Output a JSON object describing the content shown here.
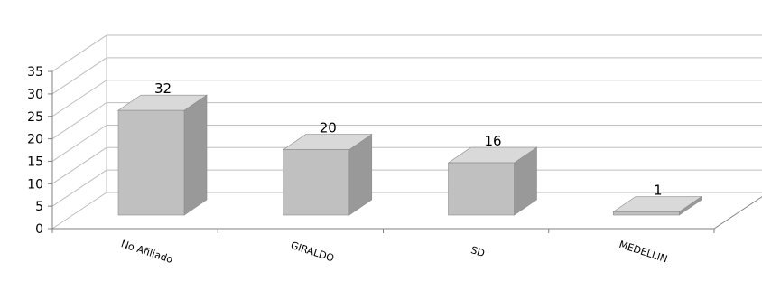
{
  "chart_data": {
    "type": "bar",
    "style": "3d-column",
    "categories": [
      "No Afiliado",
      "GIRALDO",
      "SD",
      "MEDELLIN"
    ],
    "values": [
      32,
      20,
      16,
      1
    ],
    "data_labels": [
      "32",
      "20",
      "16",
      "1"
    ],
    "y_ticks": [
      "0",
      "5",
      "10",
      "15",
      "20",
      "25",
      "30",
      "35"
    ],
    "ylim": [
      0,
      35
    ],
    "grid": true,
    "legend": "none",
    "colors": {
      "bar_front": "#c0c0c0",
      "bar_side": "#999999",
      "bar_top": "#d9d9d9",
      "bar_edge": "#8c8c8c",
      "grid": "#bfbfbf",
      "axis": "#808080"
    }
  }
}
